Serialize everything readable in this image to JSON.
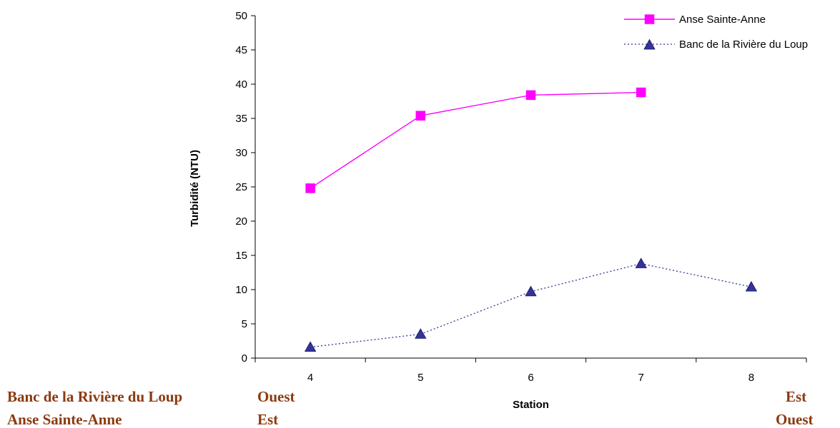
{
  "chart_data": {
    "type": "line",
    "title": "",
    "xlabel": "Station",
    "ylabel": "Turbidité (NTU)",
    "x": [
      4,
      5,
      6,
      7,
      8
    ],
    "ylim": [
      0,
      50
    ],
    "yticks": [
      0,
      5,
      10,
      15,
      20,
      25,
      30,
      35,
      40,
      45,
      50
    ],
    "grid": false,
    "legend": "top-right",
    "series": [
      {
        "name": "Anse Sainte-Anne",
        "x": [
          4,
          5,
          6,
          7
        ],
        "values": [
          24.8,
          35.4,
          38.4,
          38.8
        ],
        "color": "#FF00FF",
        "marker": "square",
        "line": "solid"
      },
      {
        "name": "Banc de la Rivière du Loup",
        "x": [
          4,
          5,
          6,
          7,
          8
        ],
        "values": [
          1.6,
          3.5,
          9.7,
          13.8,
          10.4
        ],
        "color": "#333399",
        "marker": "triangle",
        "line": "dotted"
      }
    ]
  },
  "annotations": {
    "banc_name": "Banc de la Rivière du Loup",
    "banc_left": "Ouest",
    "banc_right": "Est",
    "anse_name": "Anse Sainte-Anne",
    "anse_left": "Est",
    "anse_right": "Ouest"
  }
}
